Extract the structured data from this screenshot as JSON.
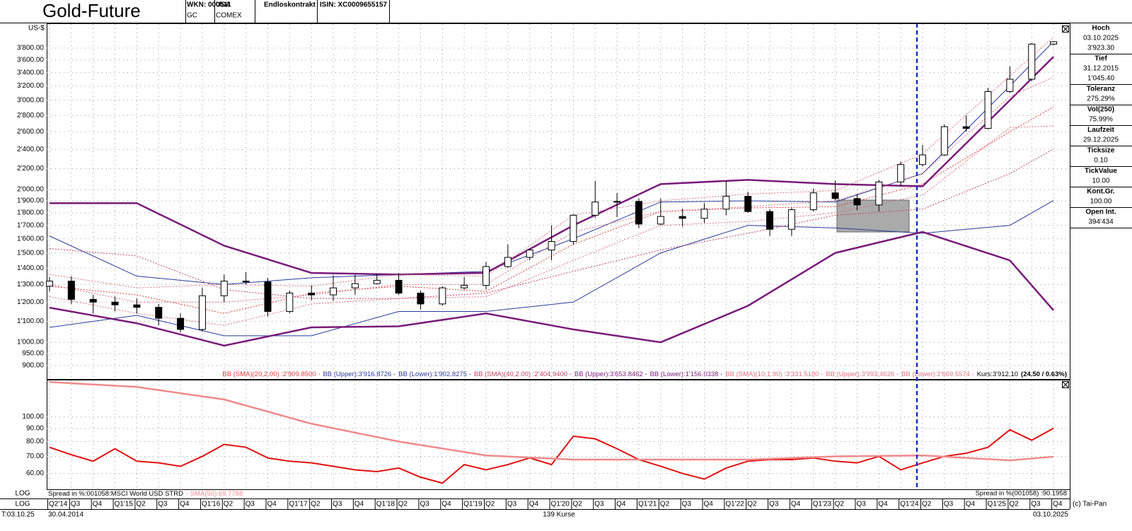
{
  "header": {
    "title": "Gold-Future",
    "fields": [
      [
        "WKN: 000511",
        "GC"
      ],
      [
        "USA",
        "COMEX"
      ],
      [
        "Endloskontrakt"
      ],
      [
        "ISIN: XC0009655157"
      ]
    ]
  },
  "sidebar": [
    {
      "label": "Hoch",
      "lines": [
        "03.10.2025",
        "3'923.30"
      ]
    },
    {
      "label": "Tief",
      "lines": [
        "31.12.2015",
        "1'045.40"
      ]
    },
    {
      "label": "Toleranz",
      "lines": [
        "275.29%"
      ]
    },
    {
      "label": "Vol(250)",
      "lines": [
        "75.99%"
      ]
    },
    {
      "label": "Laufzeit",
      "lines": [
        "29.12.2025"
      ]
    },
    {
      "label": "Ticksize",
      "lines": [
        "0.10"
      ]
    },
    {
      "label": "TickValue",
      "lines": [
        "10.00"
      ]
    },
    {
      "label": "Kont.Gr.",
      "lines": [
        "100.00"
      ]
    },
    {
      "label": "Open Int.",
      "lines": [
        "394'434"
      ]
    }
  ],
  "footer": {
    "scale_labels": [
      "LOG",
      "LOG"
    ],
    "status": "T:03.10.25",
    "start": "30.04.2014",
    "count": "139 Kurse",
    "end": "03.10.2025",
    "copyright": "(c) Tai-Pan"
  },
  "chart_data": [
    {
      "type": "candlestick",
      "y_label": "US-$",
      "log_scale": true,
      "grid": true,
      "categories": [
        "Q2'14",
        "Q3",
        "Q4",
        "Q1'15",
        "Q2",
        "Q3",
        "Q4",
        "Q1'16",
        "Q2",
        "Q3",
        "Q4",
        "Q1'17",
        "Q2",
        "Q3",
        "Q4",
        "Q1'18",
        "Q2",
        "Q3",
        "Q4",
        "Q1'19",
        "Q2",
        "Q3",
        "Q4",
        "Q1'20",
        "Q2",
        "Q3",
        "Q4",
        "Q1'21",
        "Q2",
        "Q3",
        "Q4",
        "Q1'22",
        "Q2",
        "Q3",
        "Q4",
        "Q1'23",
        "Q2",
        "Q3",
        "Q4",
        "Q1'24",
        "Q2",
        "Q3",
        "Q4",
        "Q1'25",
        "Q2",
        "Q3",
        "Q4"
      ],
      "open": [
        1290,
        1320,
        1215,
        1200,
        1185,
        1172,
        1115,
        1060,
        1235,
        1320,
        1315,
        1150,
        1250,
        1240,
        1280,
        1305,
        1325,
        1250,
        1190,
        1280,
        1295,
        1410,
        1470,
        1520,
        1580,
        1780,
        1890,
        1895,
        1710,
        1770,
        1755,
        1830,
        1940,
        1810,
        1670,
        1825,
        1970,
        1920,
        1865,
        2070,
        2240,
        2340,
        2660,
        2640,
        3120,
        3300,
        3870
      ],
      "high": [
        1345,
        1350,
        1240,
        1230,
        1220,
        1190,
        1140,
        1280,
        1360,
        1375,
        1340,
        1265,
        1295,
        1355,
        1360,
        1365,
        1370,
        1265,
        1290,
        1345,
        1440,
        1560,
        1530,
        1700,
        1790,
        2080,
        1970,
        1920,
        1920,
        1835,
        1880,
        2080,
        1980,
        1830,
        1840,
        2010,
        2085,
        1960,
        2090,
        2270,
        2450,
        2690,
        2800,
        3170,
        3500,
        3890,
        3923.3
      ],
      "low": [
        1260,
        1190,
        1140,
        1150,
        1140,
        1080,
        1045.4,
        1050,
        1200,
        1300,
        1125,
        1140,
        1210,
        1205,
        1240,
        1300,
        1240,
        1160,
        1180,
        1270,
        1270,
        1400,
        1450,
        1450,
        1560,
        1760,
        1765,
        1680,
        1700,
        1690,
        1720,
        1780,
        1800,
        1620,
        1620,
        1810,
        1900,
        1820,
        1810,
        2030,
        2220,
        2330,
        2600,
        2630,
        3100,
        3270,
        3850
      ],
      "close": [
        1320,
        1215,
        1200,
        1185,
        1172,
        1115,
        1060,
        1235,
        1320,
        1315,
        1150,
        1250,
        1240,
        1280,
        1305,
        1325,
        1250,
        1190,
        1280,
        1295,
        1410,
        1470,
        1520,
        1580,
        1780,
        1890,
        1895,
        1710,
        1770,
        1755,
        1830,
        1940,
        1810,
        1670,
        1825,
        1970,
        1920,
        1865,
        2070,
        2240,
        2340,
        2660,
        2640,
        3120,
        3300,
        3870,
        3912.1
      ],
      "up_color": "#ffffff",
      "down_color": "#000000",
      "series": [
        {
          "name": "BB (SMA)(20,2.00) :2'909.8500 -",
          "color": "#e03c3c",
          "style": "dotted",
          "line_width": 1,
          "x": [
            0,
            4,
            8,
            12,
            16,
            20,
            24,
            28,
            32,
            36,
            40,
            44,
            46
          ],
          "values": [
            1290,
            1240,
            1140,
            1250,
            1290,
            1260,
            1560,
            1810,
            1840,
            1850,
            2050,
            2600,
            2909.85
          ]
        },
        {
          "name": "BB (Upper):3'916.8726 -",
          "color": "#2a3a9a",
          "style": "solid",
          "line_width": 1,
          "x": [
            0,
            4,
            8,
            12,
            16,
            20,
            24,
            28,
            32,
            36,
            40,
            44,
            46
          ],
          "values": [
            1620,
            1350,
            1300,
            1340,
            1360,
            1380,
            1600,
            1890,
            1900,
            1890,
            2150,
            3200,
            3916.8726
          ]
        },
        {
          "name": "BB (Lower):1'902.8275 -",
          "color": "#2a3a9a",
          "style": "solid",
          "line_width": 1,
          "x": [
            0,
            4,
            8,
            12,
            16,
            20,
            24,
            28,
            32,
            36,
            40,
            44,
            46
          ],
          "values": [
            1070,
            1130,
            1030,
            1030,
            1150,
            1150,
            1200,
            1500,
            1700,
            1680,
            1640,
            1700,
            1902.8275
          ]
        },
        {
          "name": "BB (SMA)(40,2.00) :2'404.9400 -",
          "color": "#c04060",
          "style": "dotted",
          "line_width": 1,
          "x": [
            0,
            4,
            8,
            12,
            16,
            20,
            24,
            28,
            32,
            36,
            40,
            44,
            46
          ],
          "values": [
            1530,
            1480,
            1270,
            1220,
            1220,
            1250,
            1380,
            1520,
            1640,
            1780,
            1830,
            2150,
            2404.94
          ]
        },
        {
          "name": "BB (Upper):3'653.8462 -",
          "color": "#7a1a7a",
          "style": "solid",
          "line_width": 2.5,
          "x": [
            0,
            4,
            8,
            12,
            16,
            20,
            24,
            28,
            32,
            36,
            40,
            44,
            46
          ],
          "values": [
            1880,
            1880,
            1550,
            1370,
            1360,
            1370,
            1700,
            2050,
            2090,
            2050,
            2030,
            3000,
            3653.8462
          ]
        },
        {
          "name": "BB (Lower):1'156.0338 -",
          "color": "#7a1a7a",
          "style": "solid",
          "line_width": 2.5,
          "x": [
            0,
            4,
            8,
            12,
            16,
            20,
            24,
            28,
            32,
            36,
            40,
            44,
            46
          ],
          "values": [
            1170,
            1090,
            985,
            1070,
            1075,
            1140,
            1060,
            1000,
            1180,
            1500,
            1650,
            1450,
            1156.0338
          ]
        },
        {
          "name": "BB (SMA)(10,1.90) :3'331.5100 -",
          "color": "#e07080",
          "style": "dotted",
          "line_width": 1,
          "x": [
            0,
            4,
            8,
            12,
            16,
            20,
            24,
            28,
            32,
            36,
            40,
            44,
            46
          ],
          "values": [
            1300,
            1200,
            1200,
            1240,
            1300,
            1300,
            1650,
            1810,
            1850,
            1900,
            2150,
            3050,
            3331.51
          ]
        },
        {
          "name": "BB (Upper):3'993.4626 -",
          "color": "#e07080",
          "style": "dotted",
          "line_width": 1,
          "x": [
            0,
            4,
            8,
            12,
            16,
            20,
            24,
            28,
            32,
            36,
            40,
            44,
            46
          ],
          "values": [
            1360,
            1280,
            1300,
            1290,
            1360,
            1350,
            1780,
            1900,
            1960,
            1990,
            2350,
            3350,
            3993.4626
          ]
        },
        {
          "name": "BB (Lower):2'669.5574 -",
          "color": "#e07080",
          "style": "dotted",
          "line_width": 1,
          "x": [
            0,
            4,
            8,
            12,
            16,
            20,
            24,
            28,
            32,
            36,
            40,
            44,
            46
          ],
          "values": [
            1230,
            1140,
            1080,
            1190,
            1220,
            1230,
            1450,
            1700,
            1730,
            1800,
            1950,
            2650,
            2669.5574
          ]
        }
      ],
      "last_price": "Kurs:3'912.10",
      "change": "(24.50 / 0.63%)",
      "ylim": [
        863,
        4225
      ],
      "yticks": [
        {
          "value": 900,
          "label": "900.00"
        },
        {
          "value": 950,
          "label": "950.00"
        },
        {
          "value": 1000,
          "label": "1'000.00"
        },
        {
          "value": 1100,
          "label": "1'100.00"
        },
        {
          "value": 1200,
          "label": "1'200.00"
        },
        {
          "value": 1300,
          "label": "1'300.00"
        },
        {
          "value": 1400,
          "label": "1'400.00"
        },
        {
          "value": 1500,
          "label": "1'500.00"
        },
        {
          "value": 1600,
          "label": "1'600.00"
        },
        {
          "value": 1700,
          "label": "1'700.00"
        },
        {
          "value": 1800,
          "label": "1'800.00"
        },
        {
          "value": 1900,
          "label": "1'900.00"
        },
        {
          "value": 2000,
          "label": "2'000.00"
        },
        {
          "value": 2200,
          "label": "2'200.00"
        },
        {
          "value": 2400,
          "label": "2'400.00"
        },
        {
          "value": 2600,
          "label": "2'600.00"
        },
        {
          "value": 2800,
          "label": "2'800.00"
        },
        {
          "value": 3000,
          "label": "3'000.00"
        },
        {
          "value": 3200,
          "label": "3'200.00"
        },
        {
          "value": 3400,
          "label": "3'400.00"
        },
        {
          "value": 3600,
          "label": "3'600.00"
        },
        {
          "value": 3800,
          "label": "3'800.00"
        }
      ]
    },
    {
      "type": "line",
      "log_scale": true,
      "grid": true,
      "title": "Spread in %:001058:MSCI World USD STRD",
      "series": [
        {
          "name": "Spread in %(001058) :90.1958",
          "color": "#e01010",
          "line_width": 2,
          "values": [
            76,
            71,
            67,
            75,
            67,
            66,
            64,
            70,
            78,
            76,
            69,
            67,
            66,
            64,
            62,
            61,
            63,
            58,
            55,
            65,
            62,
            65,
            69,
            65,
            84,
            82,
            75,
            68,
            64,
            60,
            57,
            63,
            67,
            68,
            68,
            69,
            67,
            66,
            70,
            62,
            66,
            70,
            72,
            76,
            89,
            81,
            90.1958
          ]
        },
        {
          "name": "- SMA(50):69.7788",
          "color": "#f08a8a",
          "line_width": 2.5,
          "x": [
            0,
            4,
            8,
            12,
            16,
            20,
            24,
            28,
            32,
            36,
            40,
            44,
            46
          ],
          "values": [
            137,
            131,
            117,
            94,
            80,
            70.6,
            68,
            68,
            68,
            70,
            70.6,
            67.5,
            69.7788
          ]
        }
      ],
      "ylim": [
        52,
        139
      ],
      "yticks": [
        {
          "value": 60,
          "label": "60.00"
        },
        {
          "value": 70,
          "label": "70.00"
        },
        {
          "value": 80,
          "label": "80.00"
        },
        {
          "value": 90,
          "label": "90.00"
        },
        {
          "value": 100,
          "label": "100.00"
        }
      ]
    }
  ]
}
